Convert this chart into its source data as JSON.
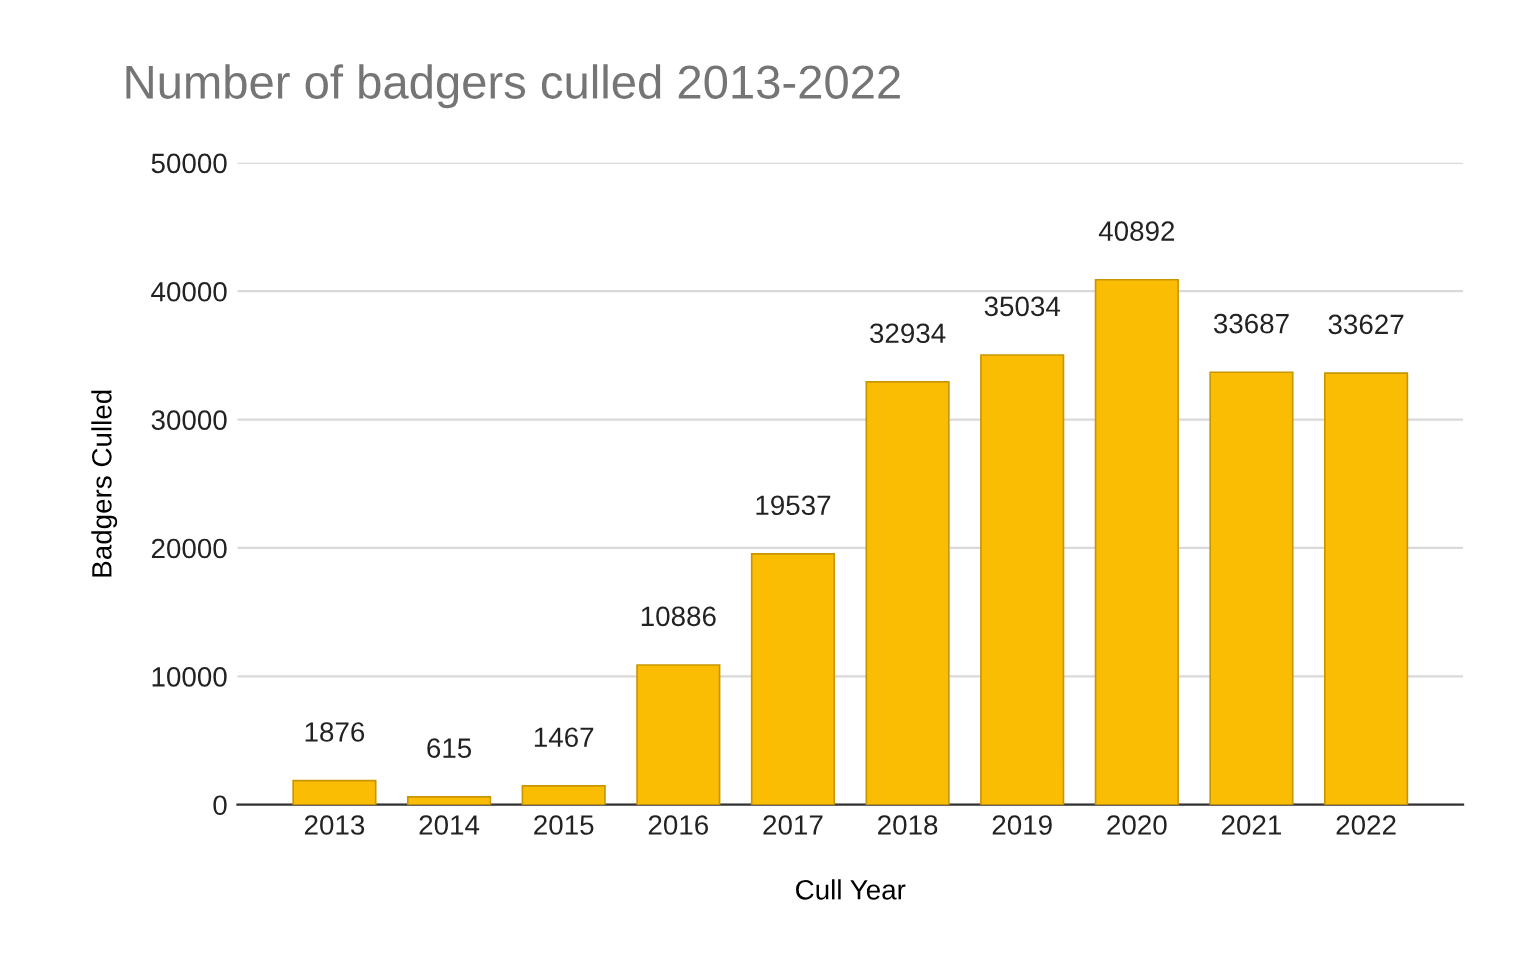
{
  "chart_data": {
    "type": "bar",
    "title": "Number of badgers culled 2013-2022",
    "xlabel": "Cull Year",
    "ylabel": "Badgers Culled",
    "categories": [
      "2013",
      "2014",
      "2015",
      "2016",
      "2017",
      "2018",
      "2019",
      "2020",
      "2021",
      "2022"
    ],
    "values": [
      1876,
      615,
      1467,
      10886,
      19537,
      32934,
      35034,
      40892,
      33687,
      33627
    ],
    "color": "#fbbc04",
    "ylim": [
      0,
      50000
    ],
    "yticks": [
      0,
      10000,
      20000,
      30000,
      40000,
      50000
    ],
    "grid": "y",
    "data_labels": true
  }
}
